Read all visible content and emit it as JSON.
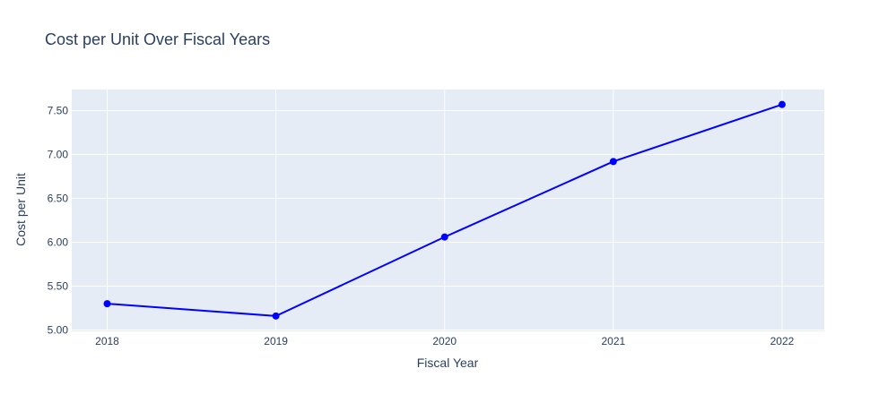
{
  "chart_data": {
    "type": "line",
    "title": "Cost per Unit Over Fiscal Years",
    "xlabel": "Fiscal Year",
    "ylabel": "Cost per Unit",
    "x": [
      2018,
      2019,
      2020,
      2021,
      2022
    ],
    "series": [
      {
        "values": [
          5.3,
          5.16,
          6.06,
          6.92,
          7.57
        ]
      }
    ],
    "x_ticks": [
      "2018",
      "2019",
      "2020",
      "2021",
      "2022"
    ],
    "y_ticks": [
      "5.00",
      "5.50",
      "6.00",
      "6.50",
      "7.00",
      "7.50"
    ],
    "ylim": [
      4.985,
      7.74
    ],
    "xlim": [
      2017.79,
      2022.25
    ],
    "grid": true,
    "legend": "none",
    "colors": {
      "series": "#0000ff",
      "plot_bg": "#e5ecf6",
      "grid": "#ffffff",
      "text": "#2a3f5f"
    }
  }
}
